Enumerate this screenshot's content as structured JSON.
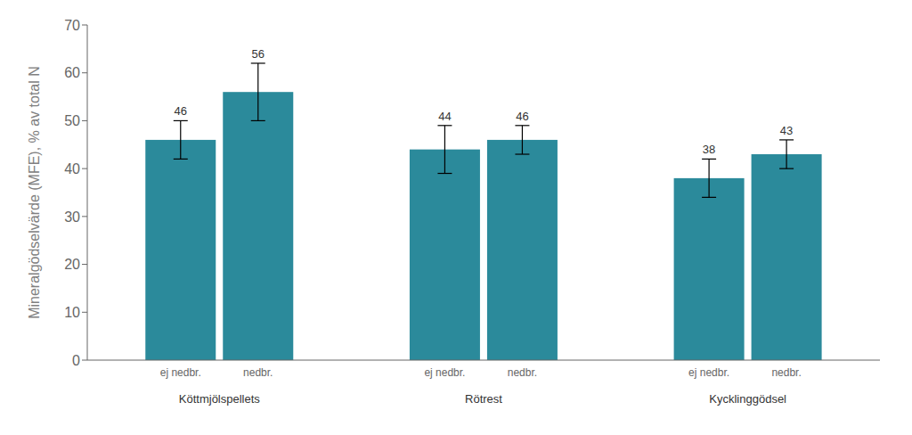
{
  "chart_data": {
    "type": "bar",
    "categories": [
      "Köttmjölspellets",
      "Rötrest",
      "Kycklinggödsel"
    ],
    "series": [
      {
        "name": "ej nedbr.",
        "color": "#2B8A9B",
        "values": [
          46,
          44,
          38
        ],
        "errors": [
          4,
          5,
          4
        ]
      },
      {
        "name": "nedbr.",
        "color": "#2B8A9B",
        "values": [
          56,
          46,
          43
        ],
        "errors": [
          6,
          3,
          3
        ]
      }
    ],
    "ylabel": "Mineralgödselvärde (MFE), % av total N",
    "ylim": [
      0,
      70
    ],
    "yticks": [
      0,
      10,
      20,
      30,
      40,
      50,
      60,
      70
    ],
    "data_labels": true,
    "grid": false
  }
}
